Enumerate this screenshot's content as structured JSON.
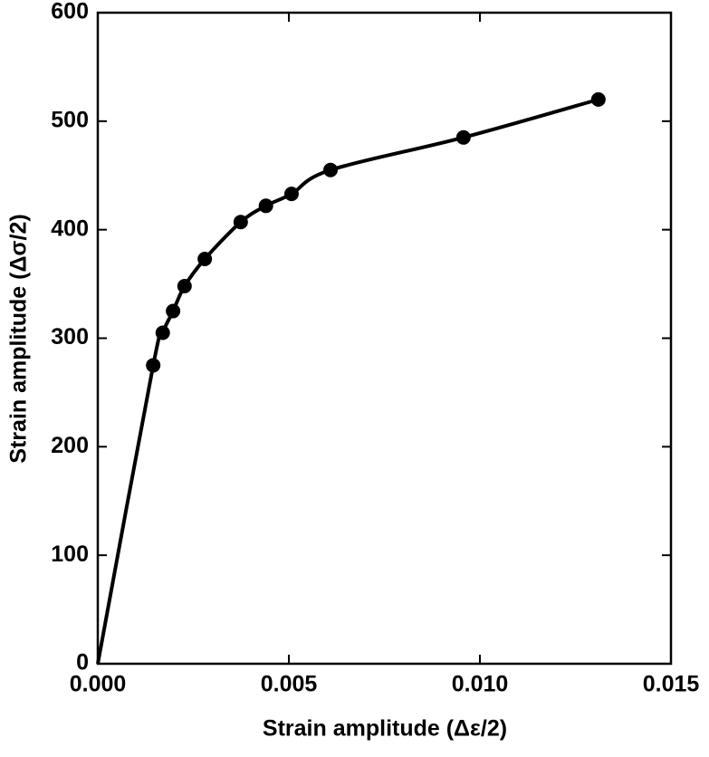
{
  "chart_data": {
    "type": "line",
    "xlabel": "Strain amplitude (Δε/2)",
    "ylabel": "Strain amplitude (Δσ/2)",
    "xlim": [
      0,
      0.015
    ],
    "xticks": [
      {
        "value": 0,
        "label": "0.000"
      },
      {
        "value": 0.005,
        "label": "0.005"
      },
      {
        "value": 0.01,
        "label": "0.010"
      },
      {
        "value": 0.015,
        "label": "0.015"
      }
    ],
    "ylim": [
      0,
      600
    ],
    "yticks": [
      0,
      100,
      200,
      300,
      400,
      500,
      600
    ],
    "grid": false,
    "series": [
      {
        "color": "#000000",
        "markers": false,
        "line": true,
        "x": [
          0,
          0.00145,
          0.0017,
          0.00197,
          0.00227,
          0.0028,
          0.00374,
          0.0044,
          0.00507,
          0.00609,
          0.00957,
          0.0131
        ],
        "values": [
          0,
          275,
          305,
          325,
          348,
          373,
          407,
          422,
          433,
          455,
          485,
          520
        ]
      },
      {
        "color": "#000000",
        "markers": true,
        "line": false,
        "x": [
          0.00145,
          0.0017,
          0.00197,
          0.00227,
          0.0028,
          0.00374,
          0.0044,
          0.00507,
          0.00609,
          0.00957,
          0.0131
        ],
        "values": [
          275,
          305,
          325,
          348,
          373,
          407,
          422,
          433,
          455,
          485,
          520
        ]
      }
    ]
  }
}
